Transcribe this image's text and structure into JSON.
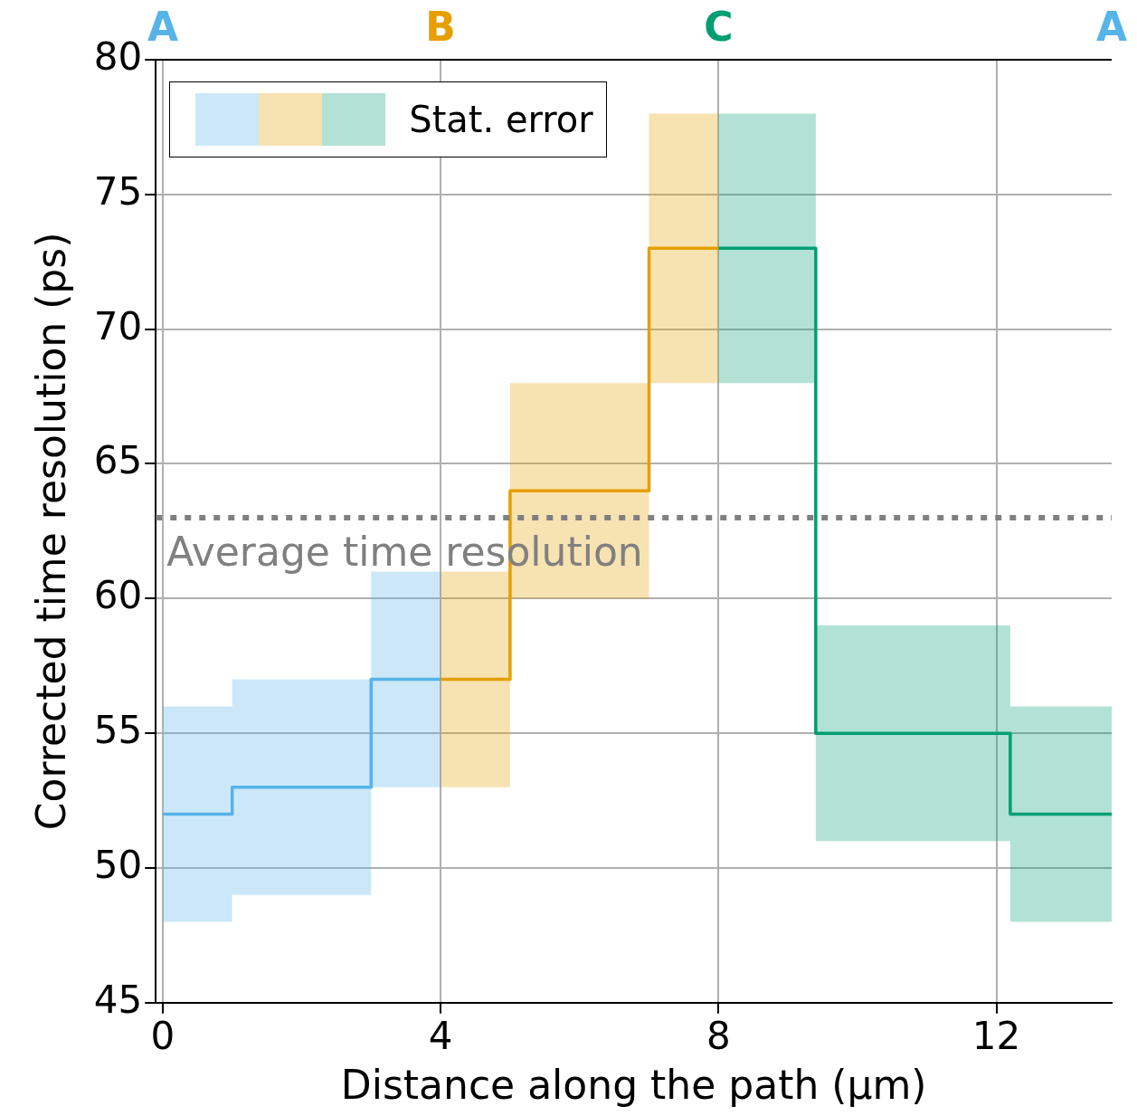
{
  "chart_data": {
    "type": "step",
    "xlabel": "Distance along the path (µm)",
    "ylabel": "Corrected time resolution (ps)",
    "legend_title": "Stat. error",
    "series": [
      {
        "color": "#56b4e9",
        "x": [
          0,
          1,
          3,
          4
        ],
        "values": [
          52,
          53,
          57,
          57
        ],
        "lower": [
          48,
          49,
          53,
          53
        ],
        "upper": [
          56,
          57,
          61,
          61
        ]
      },
      {
        "color": "#e69f00",
        "x": [
          4,
          5,
          7,
          8
        ],
        "values": [
          57,
          64,
          73,
          73
        ],
        "lower": [
          53,
          60,
          68,
          68
        ],
        "upper": [
          61,
          68,
          78,
          78
        ]
      },
      {
        "color": "#009e73",
        "x": [
          8,
          9.4,
          12.2,
          13.66
        ],
        "values": [
          73,
          55,
          52,
          52
        ],
        "lower": [
          68,
          51,
          48,
          48
        ],
        "upper": [
          78,
          59,
          56,
          56
        ]
      }
    ],
    "xlim": [
      -0.1,
      13.66
    ],
    "xticks": [
      0,
      4,
      8,
      12
    ],
    "annotations": [
      "A",
      "B",
      "C",
      "A"
    ],
    "ylim": [
      45,
      80
    ],
    "yticks": [
      45,
      50,
      55,
      60,
      65,
      70,
      75,
      80
    ],
    "ref_lines": [
      {
        "axis": "y",
        "value": 63,
        "label": "Average time resolution",
        "color": "#808080",
        "line_style": "dotted"
      }
    ],
    "grid": true
  }
}
